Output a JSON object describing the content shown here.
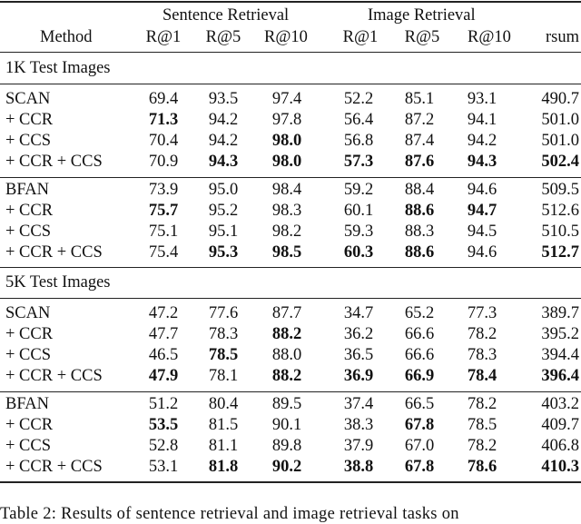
{
  "table": {
    "group_headers": [
      "Sentence Retrieval",
      "Image Retrieval"
    ],
    "columns": [
      "Method",
      "R@1",
      "R@5",
      "R@10",
      "R@1",
      "R@5",
      "R@10",
      "rsum"
    ],
    "sections": [
      {
        "title": "1K Test Images",
        "blocks": [
          [
            {
              "method": "SCAN",
              "values": [
                "69.4",
                "93.5",
                "97.4",
                "52.2",
                "85.1",
                "93.1",
                "490.7"
              ],
              "bold": []
            },
            {
              "method": "+ CCR",
              "values": [
                "71.3",
                "94.2",
                "97.8",
                "56.4",
                "87.2",
                "94.1",
                "501.0"
              ],
              "bold": [
                0
              ]
            },
            {
              "method": "+ CCS",
              "values": [
                "70.4",
                "94.2",
                "98.0",
                "56.8",
                "87.4",
                "94.2",
                "501.0"
              ],
              "bold": [
                2
              ]
            },
            {
              "method": "+ CCR + CCS",
              "values": [
                "70.9",
                "94.3",
                "98.0",
                "57.3",
                "87.6",
                "94.3",
                "502.4"
              ],
              "bold": [
                1,
                2,
                3,
                4,
                5,
                6
              ]
            }
          ],
          [
            {
              "method": "BFAN",
              "values": [
                "73.9",
                "95.0",
                "98.4",
                "59.2",
                "88.4",
                "94.6",
                "509.5"
              ],
              "bold": []
            },
            {
              "method": "+ CCR",
              "values": [
                "75.7",
                "95.2",
                "98.3",
                "60.1",
                "88.6",
                "94.7",
                "512.6"
              ],
              "bold": [
                0,
                4,
                5
              ]
            },
            {
              "method": "+ CCS",
              "values": [
                "75.1",
                "95.1",
                "98.2",
                "59.3",
                "88.3",
                "94.5",
                "510.5"
              ],
              "bold": []
            },
            {
              "method": "+ CCR + CCS",
              "values": [
                "75.4",
                "95.3",
                "98.5",
                "60.3",
                "88.6",
                "94.6",
                "512.7"
              ],
              "bold": [
                1,
                2,
                3,
                4,
                6
              ]
            }
          ]
        ]
      },
      {
        "title": "5K Test Images",
        "blocks": [
          [
            {
              "method": "SCAN",
              "values": [
                "47.2",
                "77.6",
                "87.7",
                "34.7",
                "65.2",
                "77.3",
                "389.7"
              ],
              "bold": []
            },
            {
              "method": "+ CCR",
              "values": [
                "47.7",
                "78.3",
                "88.2",
                "36.2",
                "66.6",
                "78.2",
                "395.2"
              ],
              "bold": [
                2
              ]
            },
            {
              "method": "+ CCS",
              "values": [
                "46.5",
                "78.5",
                "88.0",
                "36.5",
                "66.6",
                "78.3",
                "394.4"
              ],
              "bold": [
                1
              ]
            },
            {
              "method": "+ CCR + CCS",
              "values": [
                "47.9",
                "78.1",
                "88.2",
                "36.9",
                "66.9",
                "78.4",
                "396.4"
              ],
              "bold": [
                0,
                2,
                3,
                4,
                5,
                6
              ]
            }
          ],
          [
            {
              "method": "BFAN",
              "values": [
                "51.2",
                "80.4",
                "89.5",
                "37.4",
                "66.5",
                "78.2",
                "403.2"
              ],
              "bold": []
            },
            {
              "method": "+ CCR",
              "values": [
                "53.5",
                "81.5",
                "90.1",
                "38.3",
                "67.8",
                "78.5",
                "409.7"
              ],
              "bold": [
                0,
                4
              ]
            },
            {
              "method": "+ CCS",
              "values": [
                "52.8",
                "81.1",
                "89.8",
                "37.9",
                "67.0",
                "78.2",
                "406.8"
              ],
              "bold": []
            },
            {
              "method": "+ CCR + CCS",
              "values": [
                "53.1",
                "81.8",
                "90.2",
                "38.8",
                "67.8",
                "78.6",
                "410.3"
              ],
              "bold": [
                1,
                2,
                3,
                4,
                5,
                6
              ]
            }
          ]
        ]
      }
    ]
  },
  "caption": "Table 2: Results of sentence retrieval and image retrieval tasks on"
}
